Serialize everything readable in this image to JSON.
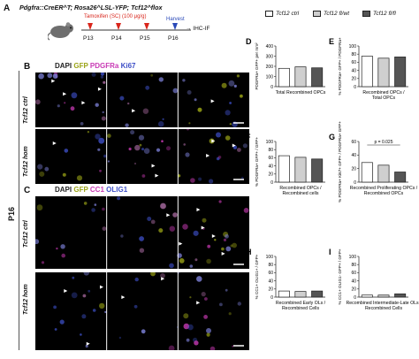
{
  "panel_a": {
    "letter": "A",
    "genotype": "Pdgfra::CreER^T; Rosa26^LSL-YFP; Tcf12^flox",
    "tamoxifen_label": "Tamoxifen (SC) (100 μg/g)",
    "harvest_label": "Harvest",
    "readout": "→ IHC-IF",
    "days": [
      "P13",
      "P14",
      "P15",
      "P16"
    ]
  },
  "legend": [
    {
      "label": "Tcf12 ctrl",
      "color": "#ffffff"
    },
    {
      "label": "Tcf12 fl/wt",
      "color": "#cfcfcf"
    },
    {
      "label": "Tcf12 fl/fl",
      "color": "#555555"
    }
  ],
  "panel_b": {
    "letter": "B",
    "stains": [
      {
        "text": "DAPI",
        "color": "#222222"
      },
      {
        "text": "GFP",
        "color": "#9aa316"
      },
      {
        "text": "PDGFRa",
        "color": "#c93ab5"
      },
      {
        "text": "Ki67",
        "color": "#3d4fc7"
      }
    ],
    "rows": [
      "Tcf12 ctrl",
      "Tcf12 hom"
    ]
  },
  "panel_c": {
    "letter": "C",
    "stains": [
      {
        "text": "DAPI",
        "color": "#222222"
      },
      {
        "text": "GFP",
        "color": "#9aa316"
      },
      {
        "text": "CC1",
        "color": "#c93ab5"
      },
      {
        "text": "OLIG1",
        "color": "#3d4fc7"
      }
    ],
    "rows": [
      "Tcf12 ctrl",
      "Tcf12 hom"
    ]
  },
  "age_label": "P16",
  "chart_data": [
    {
      "id": "D",
      "type": "bar",
      "ylabel": "PDGFRa+ GFP+ per mm²",
      "xlabel": "Total Recombined OPCs",
      "categories": [
        "Tcf12 ctrl",
        "Tcf12 fl/wt",
        "Tcf12 fl/fl"
      ],
      "values": [
        180,
        195,
        185
      ],
      "ylim": [
        0,
        400
      ],
      "yticks": [
        0,
        100,
        200,
        300,
        400
      ]
    },
    {
      "id": "E",
      "type": "bar",
      "ylabel": "% PDGFRa+ GFP+ / PDGFRa+",
      "xlabel": "Recombined OPCs / Total OPCs",
      "categories": [
        "Tcf12 ctrl",
        "Tcf12 fl/wt",
        "Tcf12 fl/fl"
      ],
      "values": [
        75,
        70,
        73
      ],
      "ylim": [
        0,
        100
      ],
      "yticks": [
        0,
        20,
        40,
        60,
        80,
        100
      ]
    },
    {
      "id": "F",
      "type": "bar",
      "ylabel": "% PDGFRa+ GFP+ / GFP+",
      "xlabel": "Recombined OPCs / Recombined cells",
      "categories": [
        "Tcf12 ctrl",
        "Tcf12 fl/wt",
        "Tcf12 fl/fl"
      ],
      "values": [
        65,
        61,
        57
      ],
      "ylim": [
        0,
        100
      ],
      "yticks": [
        0,
        20,
        40,
        60,
        80,
        100
      ]
    },
    {
      "id": "G",
      "type": "bar",
      "ylabel": "% PDGFRa+ Ki67+ GFP+ / PDGFRa+ GFP+",
      "xlabel": "Recombined Proliferating OPCs / Recombined OPCs",
      "categories": [
        "Tcf12 ctrl",
        "Tcf12 fl/wt",
        "Tcf12 fl/fl"
      ],
      "values": [
        29,
        25,
        15
      ],
      "ylim": [
        0,
        60
      ],
      "yticks": [
        0,
        20,
        40,
        60
      ],
      "annotation": "p = 0.025"
    },
    {
      "id": "H",
      "type": "bar",
      "ylabel": "% CC1+ OLIG1+ / GFP+",
      "xlabel": "Recombined Early OLs / Recombined Cells",
      "categories": [
        "Tcf12 ctrl",
        "Tcf12 fl/wt",
        "Tcf12 fl/fl"
      ],
      "values": [
        15,
        14,
        15
      ],
      "ylim": [
        0,
        100
      ],
      "yticks": [
        0,
        20,
        40,
        60,
        80,
        100
      ]
    },
    {
      "id": "I",
      "type": "bar",
      "ylabel": "% CC1+ OLIG1- GFP+ / GFP+",
      "xlabel": "Recombined Intermediate-Late OLs / Recombined Cells",
      "categories": [
        "Tcf12 ctrl",
        "Tcf12 fl/wt",
        "Tcf12 fl/fl"
      ],
      "values": [
        5,
        5,
        8
      ],
      "ylim": [
        0,
        100
      ],
      "yticks": [
        0,
        20,
        40,
        60,
        80,
        100
      ]
    }
  ]
}
